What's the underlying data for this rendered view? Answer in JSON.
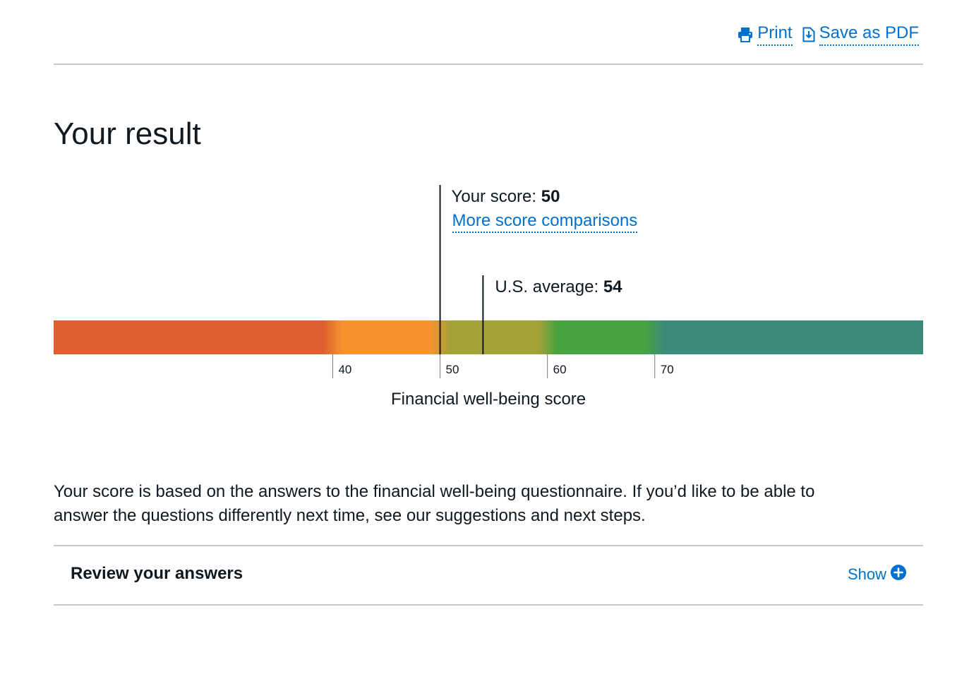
{
  "toolbar": {
    "print_label": "Print",
    "print_icon": "printer-icon",
    "save_pdf_label": "Save as PDF",
    "save_pdf_icon": "document-download-icon"
  },
  "page": {
    "title": "Your result"
  },
  "chart_data": {
    "type": "gradient-scale",
    "ticks": [
      40,
      50,
      60,
      70
    ],
    "scale_range": [
      14,
      95
    ],
    "axis_title": "Financial well-being score",
    "bands": [
      {
        "from": 14,
        "to": 40,
        "color": "#dd5f2e"
      },
      {
        "from": 40,
        "to": 50,
        "color": "#f7922f"
      },
      {
        "from": 50,
        "to": 60,
        "color": "#a6a23a"
      },
      {
        "from": 60,
        "to": 70,
        "color": "#47a33f"
      },
      {
        "from": 70,
        "to": 95,
        "color": "#3b8b7a"
      }
    ],
    "markers": [
      {
        "name": "your-score",
        "label": "Your score: ",
        "value_text": "50",
        "value": 50,
        "link": "More score comparisons"
      },
      {
        "name": "us-average",
        "label": "U.S. average: ",
        "value_text": "54",
        "value": 54
      }
    ]
  },
  "summary": "Your score is based on the answers to the financial well-being questionnaire. If you’d like to be able to answer the questions differently next time, see our suggestions and next steps.",
  "review": {
    "title": "Review your answers",
    "show_label": "Show",
    "show_icon": "plus-circle-icon"
  },
  "colors": {
    "link": "#0072ce",
    "text": "#101820",
    "rule": "#c7c8ca"
  }
}
